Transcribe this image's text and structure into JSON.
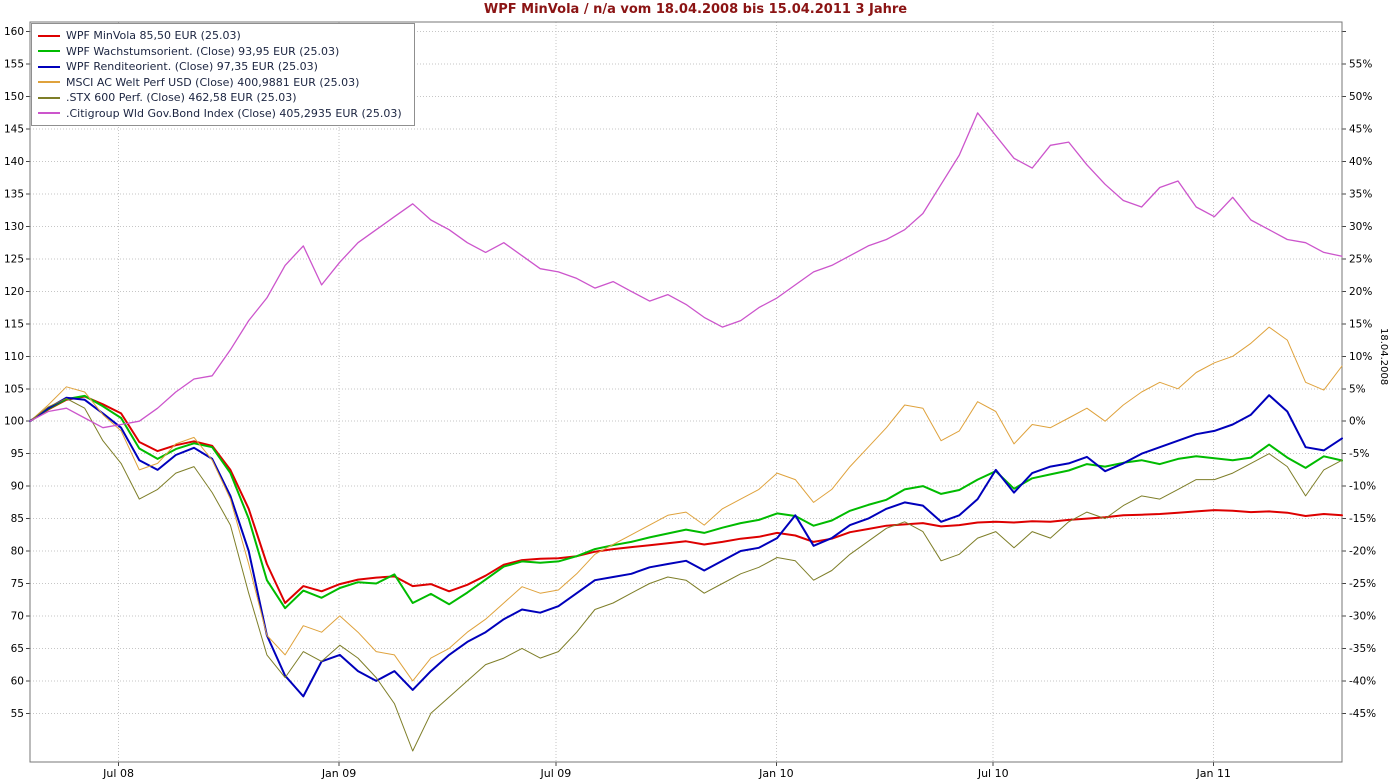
{
  "colors": {
    "title": "#8b1414",
    "axis_text": "#000000",
    "grid": "#c6c6c6",
    "legend_text": "#1b2440"
  },
  "chart_data": {
    "type": "line",
    "title": "WPF MinVola / n/a vom 18.04.2008 bis 15.04.2011 3 Jahre",
    "legend_position": "top-left",
    "grid": true,
    "x_axis": {
      "unit": "months since 18.04.2008",
      "range": [
        0,
        36
      ],
      "start_date_label": "18.04.2008",
      "ticks": [
        {
          "t": 2.43,
          "label": "Jul 08"
        },
        {
          "t": 8.48,
          "label": "Jan 09"
        },
        {
          "t": 14.43,
          "label": "Jul 09"
        },
        {
          "t": 20.48,
          "label": "Jan 10"
        },
        {
          "t": 26.43,
          "label": "Jul 10"
        },
        {
          "t": 32.48,
          "label": "Jan 11"
        }
      ]
    },
    "y_axis_left": {
      "min": 55,
      "max": 160,
      "step": 5,
      "plot_min": 47.5,
      "plot_max": 161.5
    },
    "y_axis_right": {
      "min": -45,
      "max": 55,
      "step": 5,
      "suffix": "%"
    },
    "x": [
      0,
      0.5,
      1,
      1.5,
      2,
      2.5,
      3,
      3.5,
      4,
      4.5,
      5,
      5.5,
      6,
      6.5,
      7,
      7.5,
      8,
      8.5,
      9,
      9.5,
      10,
      10.5,
      11,
      11.5,
      12,
      12.5,
      13,
      13.5,
      14,
      14.5,
      15,
      15.5,
      16,
      16.5,
      17,
      17.5,
      18,
      18.5,
      19,
      19.5,
      20,
      20.5,
      21,
      21.5,
      22,
      22.5,
      23,
      23.5,
      24,
      24.5,
      25,
      25.5,
      26,
      26.5,
      27,
      27.5,
      28,
      28.5,
      29,
      29.5,
      30,
      30.5,
      31,
      31.5,
      32,
      32.5,
      33,
      33.5,
      34,
      34.5,
      35,
      35.5,
      36
    ],
    "series": [
      {
        "id": "wpf-minvola",
        "label": "WPF MinVola 85,50 EUR (25.03)",
        "color": "#dd0000",
        "width": 2,
        "values": [
          100.0,
          101.8,
          103.3,
          103.8,
          102.6,
          101.2,
          96.8,
          95.4,
          96.3,
          96.9,
          96.2,
          92.5,
          86.5,
          78.0,
          72.0,
          74.6,
          73.8,
          74.9,
          75.6,
          75.9,
          76.1,
          74.6,
          74.9,
          73.8,
          74.8,
          76.2,
          77.9,
          78.6,
          78.8,
          78.9,
          79.2,
          79.9,
          80.3,
          80.6,
          80.9,
          81.2,
          81.5,
          81.0,
          81.4,
          81.9,
          82.2,
          82.8,
          82.4,
          81.4,
          81.9,
          82.9,
          83.4,
          83.9,
          84.1,
          84.3,
          83.8,
          84.0,
          84.4,
          84.5,
          84.4,
          84.6,
          84.5,
          84.8,
          85.0,
          85.2,
          85.5,
          85.6,
          85.7,
          85.9,
          86.1,
          86.3,
          86.2,
          86.0,
          86.1,
          85.9,
          85.4,
          85.7,
          85.5
        ]
      },
      {
        "id": "wpf-wachstumsorient",
        "label": "WPF Wachstumsorient. (Close) 93,95 EUR (25.03)",
        "color": "#00bb00",
        "width": 2,
        "values": [
          100.0,
          101.9,
          103.4,
          103.9,
          102.3,
          100.5,
          95.8,
          94.2,
          95.7,
          96.6,
          96.0,
          92.0,
          85.0,
          75.5,
          71.2,
          73.9,
          72.8,
          74.3,
          75.2,
          75.0,
          76.4,
          72.0,
          73.4,
          71.8,
          73.6,
          75.6,
          77.6,
          78.4,
          78.2,
          78.4,
          79.2,
          80.3,
          80.9,
          81.4,
          82.1,
          82.7,
          83.3,
          82.8,
          83.6,
          84.3,
          84.8,
          85.8,
          85.4,
          83.9,
          84.7,
          86.2,
          87.1,
          87.9,
          89.5,
          90.0,
          88.8,
          89.4,
          91.0,
          92.3,
          89.6,
          91.2,
          91.8,
          92.4,
          93.4,
          93.0,
          93.6,
          94.0,
          93.4,
          94.2,
          94.6,
          94.3,
          94.0,
          94.4,
          96.4,
          94.4,
          92.8,
          94.6,
          93.95
        ]
      },
      {
        "id": "wpf-renditeorient",
        "label": "WPF Renditeorient. (Close) 97,35 EUR (25.03)",
        "color": "#0000bb",
        "width": 2,
        "values": [
          100.0,
          102.0,
          103.6,
          103.3,
          101.2,
          99.0,
          94.0,
          92.5,
          94.8,
          95.9,
          94.2,
          88.5,
          80.0,
          67.0,
          60.8,
          57.6,
          63.0,
          64.0,
          61.5,
          60.0,
          61.5,
          58.6,
          61.5,
          64.0,
          66.0,
          67.5,
          69.5,
          71.0,
          70.5,
          71.5,
          73.5,
          75.5,
          76.0,
          76.5,
          77.5,
          78.0,
          78.5,
          77.0,
          78.5,
          80.0,
          80.5,
          82.0,
          85.5,
          80.8,
          82.0,
          84.0,
          85.0,
          86.5,
          87.5,
          87.0,
          84.5,
          85.5,
          88.0,
          92.5,
          89.0,
          92.0,
          93.0,
          93.5,
          94.5,
          92.3,
          93.5,
          95.0,
          96.0,
          97.0,
          98.0,
          98.5,
          99.5,
          101.0,
          104.0,
          101.5,
          96.0,
          95.5,
          97.35
        ]
      },
      {
        "id": "msci-ac-welt",
        "label": "MSCI AC Welt Perf USD (Close) 400,9881 EUR (25.03)",
        "color": "#dfa23c",
        "width": 1,
        "values": [
          100.0,
          102.5,
          105.3,
          104.5,
          101.0,
          98.5,
          92.5,
          93.5,
          96.5,
          97.5,
          94.0,
          88.0,
          78.0,
          67.0,
          64.0,
          68.5,
          67.5,
          70.0,
          67.5,
          64.5,
          64.0,
          60.0,
          63.5,
          65.0,
          67.5,
          69.5,
          72.0,
          74.5,
          73.5,
          74.0,
          76.5,
          79.5,
          81.0,
          82.5,
          84.0,
          85.5,
          86.0,
          84.0,
          86.5,
          88.0,
          89.5,
          92.0,
          91.0,
          87.5,
          89.5,
          93.0,
          96.0,
          99.0,
          102.5,
          102.0,
          97.0,
          98.5,
          103.0,
          101.5,
          96.5,
          99.5,
          99.0,
          100.5,
          102.0,
          100.0,
          102.5,
          104.5,
          106.0,
          105.0,
          107.5,
          109.0,
          110.0,
          112.0,
          114.5,
          112.5,
          106.0,
          104.8,
          108.5
        ]
      },
      {
        "id": "stx-600",
        "label": ".STX 600 Perf. (Close) 462,58 EUR (25.03)",
        "color": "#7e7e28",
        "width": 1,
        "values": [
          100.0,
          102.2,
          103.5,
          102.0,
          97.0,
          93.5,
          88.0,
          89.5,
          92.0,
          93.0,
          89.0,
          84.0,
          73.5,
          64.0,
          60.5,
          64.5,
          63.0,
          65.5,
          63.5,
          60.5,
          56.5,
          49.2,
          55.0,
          57.5,
          60.0,
          62.5,
          63.5,
          65.0,
          63.5,
          64.5,
          67.5,
          71.0,
          72.0,
          73.5,
          75.0,
          76.0,
          75.5,
          73.5,
          75.0,
          76.5,
          77.5,
          79.0,
          78.5,
          75.5,
          77.0,
          79.5,
          81.5,
          83.5,
          84.5,
          83.0,
          78.5,
          79.5,
          82.0,
          83.0,
          80.5,
          83.0,
          82.0,
          84.5,
          86.0,
          85.0,
          87.0,
          88.5,
          88.0,
          89.5,
          91.0,
          91.0,
          92.0,
          93.5,
          95.0,
          93.0,
          88.5,
          92.5,
          94.0
        ]
      },
      {
        "id": "citigroup-bond",
        "label": ".Citigroup Wld Gov.Bond Index (Close) 405,2935 EUR (25.03)",
        "color": "#cc55cc",
        "width": 1.3,
        "values": [
          100.0,
          101.5,
          102.0,
          100.5,
          99.0,
          99.5,
          100.0,
          102.0,
          104.5,
          106.5,
          107.0,
          111.0,
          115.5,
          119.0,
          124.0,
          127.0,
          121.0,
          124.5,
          127.5,
          129.5,
          131.5,
          133.5,
          131.0,
          129.5,
          127.5,
          126.0,
          127.5,
          125.5,
          123.5,
          123.0,
          122.0,
          120.5,
          121.5,
          120.0,
          118.5,
          119.5,
          118.0,
          116.0,
          114.5,
          115.5,
          117.5,
          119.0,
          121.0,
          123.0,
          124.0,
          125.5,
          127.0,
          128.0,
          129.5,
          132.0,
          136.5,
          141.0,
          147.5,
          144.0,
          140.5,
          139.0,
          142.5,
          143.0,
          139.5,
          136.5,
          134.0,
          133.0,
          136.0,
          137.0,
          133.0,
          131.5,
          134.5,
          131.0,
          129.5,
          128.0,
          127.5,
          126.0,
          125.4
        ]
      }
    ]
  }
}
